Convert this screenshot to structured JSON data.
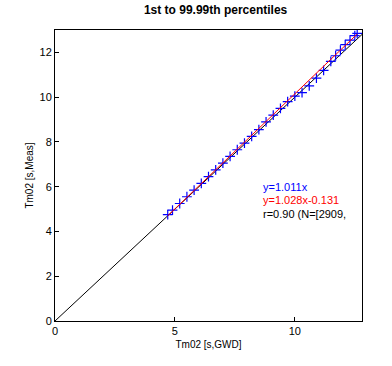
{
  "chart_data": {
    "type": "scatter",
    "title": "1st to 99.99th percentiles",
    "x_label": "Tm02 [s,GWD]",
    "y_label": "Tm02 [s,Meas]",
    "series": [
      {
        "type": "line",
        "color": "#000000",
        "x": [
          0,
          12.8
        ],
        "values": [
          0,
          12.8
        ]
      },
      {
        "type": "scatter",
        "marker": "cross",
        "color": "#0000ff",
        "x": [
          4.7,
          4.9,
          5.2,
          5.5,
          5.8,
          6.1,
          6.4,
          6.7,
          7.0,
          7.3,
          7.6,
          7.9,
          8.2,
          8.5,
          8.8,
          9.1,
          9.4,
          9.7,
          10.0,
          10.3,
          10.6,
          10.9,
          11.2,
          11.5,
          11.7,
          11.9,
          12.1,
          12.3,
          12.5,
          12.6
        ],
        "values": [
          4.75,
          4.95,
          5.25,
          5.55,
          5.85,
          6.15,
          6.45,
          6.75,
          7.05,
          7.35,
          7.65,
          7.95,
          8.25,
          8.55,
          8.9,
          9.2,
          9.5,
          9.8,
          10.05,
          10.2,
          10.5,
          10.85,
          11.2,
          11.6,
          11.85,
          12.1,
          12.35,
          12.55,
          12.75,
          12.85
        ]
      },
      {
        "type": "line",
        "color": "#ff0000",
        "x": [
          4.7,
          12.6
        ],
        "values": [
          4.7,
          12.82
        ]
      }
    ],
    "annotations": [
      {
        "text": "y=1.011x",
        "x": 8.6,
        "y": 6.0,
        "color": "#0000ff"
      },
      {
        "text": "y=1.028x-0.131",
        "x": 8.6,
        "y": 5.4,
        "color": "#ff0000"
      },
      {
        "text": "r=0.90 (N=[2909,",
        "x": 8.6,
        "y": 4.8,
        "color": "#000000"
      }
    ],
    "xlim": [
      0,
      12.8
    ],
    "ylim": [
      0,
      13
    ],
    "xticks": [
      0,
      5,
      10
    ],
    "yticks": [
      0,
      2,
      4,
      6,
      8,
      10,
      12
    ],
    "grid": false
  }
}
